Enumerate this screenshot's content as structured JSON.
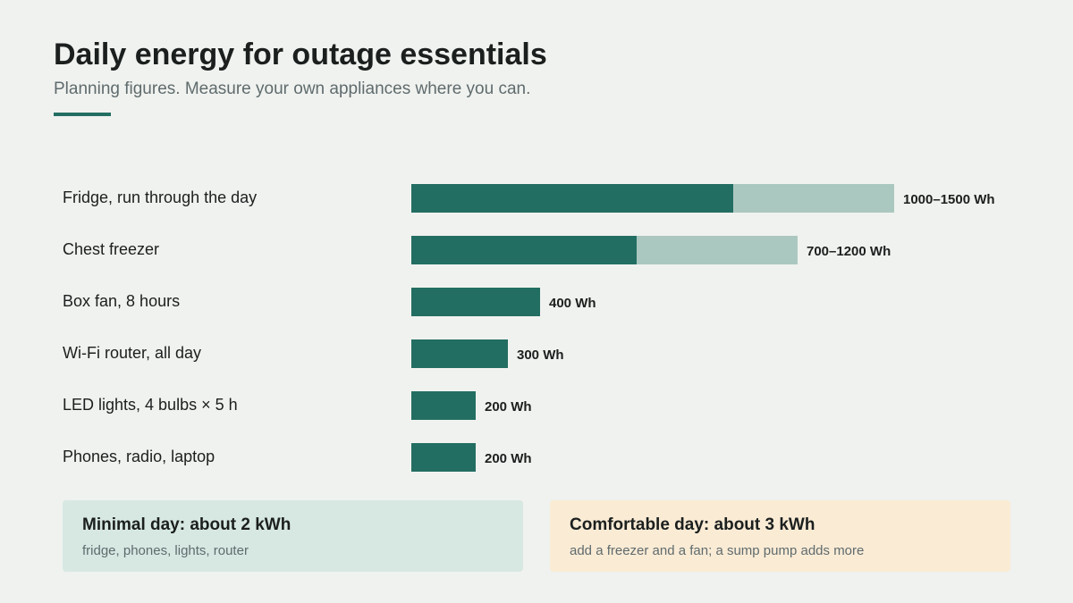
{
  "header": {
    "title": "Daily energy for outage essentials",
    "subtitle": "Planning figures. Measure your own appliances where you can."
  },
  "colors": {
    "bar_low": "#236e62",
    "bar_range": "#abc8c0",
    "accent": "#236e62",
    "card_minimal_bg": "#d7e8e3",
    "card_comfortable_bg": "#faebd5"
  },
  "chart_data": {
    "type": "bar",
    "orientation": "horizontal",
    "categories": [
      "Fridge, run through the day",
      "Chest freezer",
      "Box fan, 8 hours",
      "Wi-Fi router, all day",
      "LED lights, 4 bulbs × 5 h",
      "Phones, radio, laptop"
    ],
    "series": [
      {
        "values": [
          1000,
          700,
          400,
          300,
          200,
          200
        ]
      },
      {
        "values": [
          1500,
          1200,
          400,
          300,
          200,
          200
        ]
      }
    ],
    "value_labels": [
      "1000–1500 Wh",
      "700–1200 Wh",
      "400 Wh",
      "300 Wh",
      "200 Wh",
      "200 Wh"
    ],
    "xlim": [
      0,
      1500
    ],
    "unit": "Wh",
    "grid": false,
    "title": "Daily energy for outage essentials",
    "subtitle": "Planning figures. Measure your own appliances where you can."
  },
  "summary": {
    "minimal": {
      "title": "Minimal day: about 2 kWh",
      "detail": "fridge, phones, lights, router"
    },
    "comfortable": {
      "title": "Comfortable day: about 3 kWh",
      "detail": "add a freezer and a fan; a sump pump adds more"
    }
  }
}
